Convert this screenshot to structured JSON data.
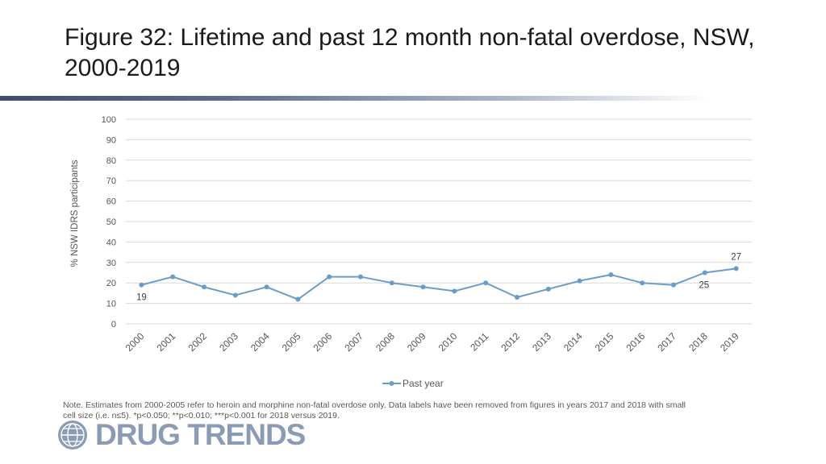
{
  "title": "Figure 32: Lifetime and past 12 month non-fatal overdose, NSW, 2000-2019",
  "note": {
    "line1": "Note. Estimates from 2000-2005 refer to heroin and morphine non-fatal overdose only. Data labels have been removed from figures in years 2017 and 2018 with small",
    "line2": "cell size (i.e. n≤5).  *p<0.050; **p<0.010; ***p<0.001 for 2018 versus 2019."
  },
  "logo": {
    "text": "DRUG TRENDS",
    "icon": "globe-icon"
  },
  "colors": {
    "series": "#6a9cc8",
    "grid": "#d9d9d9",
    "rule": "#3f4f6b",
    "logo": "#8a9bb6"
  },
  "chart_data": {
    "type": "line",
    "title": "",
    "xlabel": "",
    "ylabel": "% NSW IDRS participants",
    "ylim": [
      0,
      100
    ],
    "yticks": [
      0,
      10,
      20,
      30,
      40,
      50,
      60,
      70,
      80,
      90,
      100
    ],
    "categories": [
      "2000",
      "2001",
      "2002",
      "2003",
      "2004",
      "2005",
      "2006",
      "2007",
      "2008",
      "2009",
      "2010",
      "2011",
      "2012",
      "2013",
      "2014",
      "2015",
      "2016",
      "2017",
      "2018",
      "2019"
    ],
    "series": [
      {
        "name": "Past year",
        "values": [
          19,
          23,
          18,
          14,
          18,
          12,
          23,
          23,
          20,
          18,
          16,
          20,
          13,
          17,
          21,
          24,
          20,
          19,
          25,
          27
        ]
      }
    ],
    "data_labels": [
      {
        "index": 0,
        "text": "19"
      },
      {
        "index": 18,
        "text": "25"
      },
      {
        "index": 19,
        "text": "27"
      }
    ],
    "legend": "bottom-center",
    "grid": true
  }
}
